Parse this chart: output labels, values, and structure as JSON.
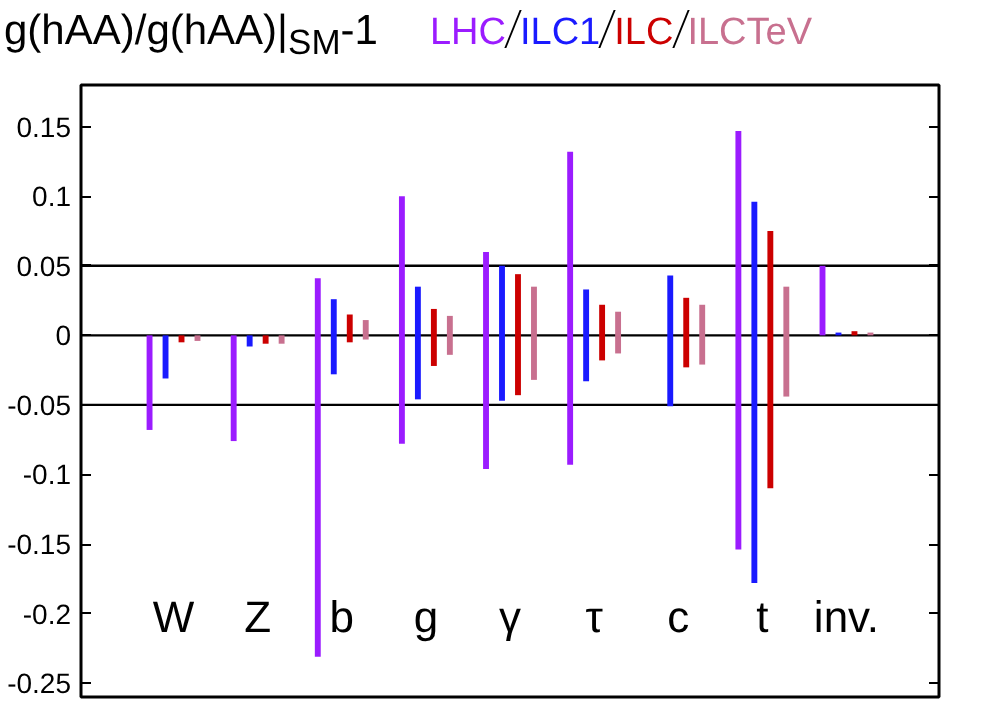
{
  "chart_data": {
    "type": "bar",
    "title": "g(hAA)/g(hAA)|$_{SM}$-1",
    "categories": [
      "W",
      "Z",
      "b",
      "g",
      "γ",
      "τ",
      "c",
      "t",
      "inv."
    ],
    "series": [
      {
        "name": "LHC",
        "color": "#9b1cff",
        "base": [
          -0.068,
          -0.076,
          -0.231,
          -0.078,
          -0.096,
          -0.093,
          null,
          -0.154,
          0
        ],
        "values": [
          0.068,
          0.076,
          0.272,
          0.178,
          0.156,
          0.225,
          null,
          0.301,
          0.05
        ]
      },
      {
        "name": "ILC1",
        "color": "#1a1aff",
        "base": [
          -0.031,
          -0.008,
          -0.028,
          -0.046,
          -0.047,
          -0.033,
          -0.051,
          -0.178,
          0
        ],
        "values": [
          0.031,
          0.008,
          0.054,
          0.081,
          0.097,
          0.066,
          0.094,
          0.274,
          0.002
        ]
      },
      {
        "name": "ILC",
        "color": "#cc0000",
        "base": [
          -0.005,
          -0.006,
          -0.005,
          -0.022,
          -0.043,
          -0.018,
          -0.023,
          -0.11,
          0
        ],
        "values": [
          0.005,
          0.006,
          0.02,
          0.041,
          0.087,
          0.04,
          0.05,
          0.185,
          0.003
        ]
      },
      {
        "name": "ILCTeV",
        "color": "#c8708f",
        "base": [
          -0.004,
          -0.006,
          -0.003,
          -0.014,
          -0.032,
          -0.013,
          -0.021,
          -0.044,
          0
        ],
        "values": [
          0.004,
          0.006,
          0.014,
          0.028,
          0.067,
          0.03,
          0.043,
          0.079,
          0.002
        ]
      }
    ],
    "ylim": [
      -0.26,
      0.18
    ],
    "yticks": [
      -0.25,
      -0.2,
      -0.15,
      -0.1,
      -0.05,
      0,
      0.05,
      0.1,
      0.15
    ],
    "ref_lines": [
      {
        "axis": "y",
        "value": 0.05
      },
      {
        "axis": "y",
        "value": 0
      },
      {
        "axis": "y",
        "value": -0.05
      }
    ],
    "tick_labels": "y",
    "legend": "top",
    "grid": false
  }
}
